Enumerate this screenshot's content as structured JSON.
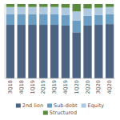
{
  "chart_data": {
    "type": "bar",
    "stacked": true,
    "categories": [
      "3Q18",
      "4Q18",
      "1Q19",
      "2Q19",
      "3Q19",
      "4Q19",
      "1Q20",
      "2Q20",
      "3Q20",
      "4Q20"
    ],
    "series": [
      {
        "name": "2nd lien",
        "color": "#4d6382",
        "values": [
          72,
          72,
          72,
          72,
          72,
          71,
          62,
          71,
          72,
          73
        ]
      },
      {
        "name": "Sub-debt",
        "color": "#6b9dc2",
        "values": [
          14,
          14,
          14,
          14,
          14,
          14,
          16,
          13,
          13,
          13
        ]
      },
      {
        "name": "Equity",
        "color": "#aec9df",
        "values": [
          10,
          10,
          10,
          10,
          10,
          10,
          12,
          10,
          10,
          10
        ]
      },
      {
        "name": "Structured",
        "color": "#5a8a3d",
        "values": [
          4,
          4,
          4,
          4,
          4,
          5,
          10,
          6,
          5,
          4
        ]
      }
    ],
    "ylim": [
      0,
      100
    ],
    "yticks": [],
    "tick_labels": "x",
    "legend": "bottom"
  }
}
